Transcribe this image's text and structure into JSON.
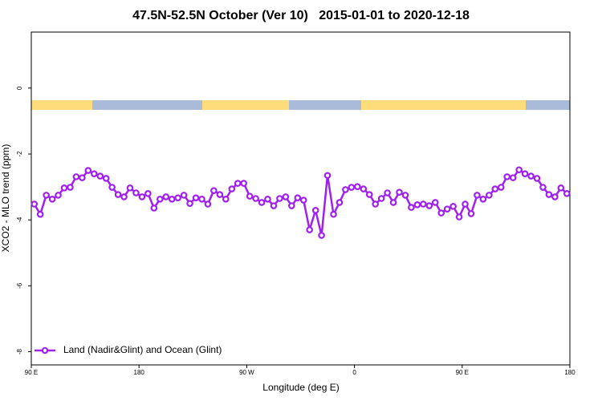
{
  "chart_data": {
    "type": "line",
    "title": "47.5N-52.5N October (Ver 10)   2015-01-01 to 2020-12-18",
    "xlabel": "Longitude (deg E)",
    "ylabel": "XCO2 - MLO trend (ppm)",
    "xlim": [
      90,
      540
    ],
    "ylim": [
      -8.4,
      1.7
    ],
    "xticks": [
      {
        "value": 90,
        "label": "90 E"
      },
      180,
      {
        "value": 270,
        "label": "90 W"
      },
      {
        "value": 360,
        "label": "0"
      },
      {
        "value": 450,
        "label": "90 E"
      },
      {
        "value": 540,
        "label": "180"
      }
    ],
    "yticks": [
      -8,
      -6,
      -4,
      -2,
      0
    ],
    "legend_position": "bottom left",
    "x": [
      92.5,
      97.5,
      102.5,
      107.5,
      112.5,
      117.5,
      122.5,
      127.5,
      132.5,
      137.5,
      142.5,
      147.5,
      152.5,
      157.5,
      162.5,
      167.5,
      172.5,
      177.5,
      182.5,
      187.5,
      192.5,
      197.5,
      202.5,
      207.5,
      212.5,
      217.5,
      222.5,
      227.5,
      232.5,
      237.5,
      242.5,
      247.5,
      252.5,
      257.5,
      262.5,
      267.5,
      272.5,
      277.5,
      282.5,
      287.5,
      292.5,
      297.5,
      302.5,
      307.5,
      312.5,
      317.5,
      322.5,
      327.5,
      332.5,
      337.5,
      342.5,
      347.5,
      352.5,
      357.5,
      362.5,
      367.5,
      372.5,
      377.5,
      382.5,
      387.5,
      392.5,
      397.5,
      402.5,
      407.5,
      412.5,
      417.5,
      422.5,
      427.5,
      432.5,
      437.5,
      442.5,
      447.5,
      452.5,
      457.5,
      462.5,
      467.5,
      472.5,
      477.5,
      482.5,
      487.5,
      492.5,
      497.5,
      502.5,
      507.5,
      512.5,
      517.5,
      522.5,
      527.5,
      532.5,
      537.5
    ],
    "series": [
      {
        "name": "Land (Nadir&Glint) and Ocean (Glint)",
        "color": "#a020f0",
        "values": [
          -3.52,
          -3.83,
          -3.25,
          -3.37,
          -3.25,
          -3.03,
          -3.01,
          -2.69,
          -2.72,
          -2.5,
          -2.6,
          -2.67,
          -2.74,
          -3.01,
          -3.23,
          -3.3,
          -3.03,
          -3.18,
          -3.3,
          -3.2,
          -3.64,
          -3.37,
          -3.3,
          -3.37,
          -3.33,
          -3.25,
          -3.5,
          -3.33,
          -3.37,
          -3.52,
          -3.11,
          -3.23,
          -3.37,
          -3.06,
          -2.89,
          -2.89,
          -3.28,
          -3.35,
          -3.47,
          -3.37,
          -3.57,
          -3.35,
          -3.3,
          -3.57,
          -3.33,
          -3.4,
          -4.3,
          -3.71,
          -4.47,
          -2.65,
          -3.83,
          -3.47,
          -3.08,
          -3.01,
          -2.99,
          -3.06,
          -3.23,
          -3.52,
          -3.35,
          -3.18,
          -3.47,
          -3.16,
          -3.25,
          -3.62,
          -3.54,
          -3.52,
          -3.57,
          -3.47,
          -3.79,
          -3.67,
          -3.59,
          -3.91,
          -3.52,
          -3.81,
          -3.25,
          -3.37,
          -3.25,
          -3.06,
          -3.01,
          -2.69,
          -2.72,
          -2.48,
          -2.6,
          -2.67,
          -2.74,
          -3.01,
          -3.23,
          -3.3,
          -3.03,
          -3.2
        ]
      }
    ]
  }
}
